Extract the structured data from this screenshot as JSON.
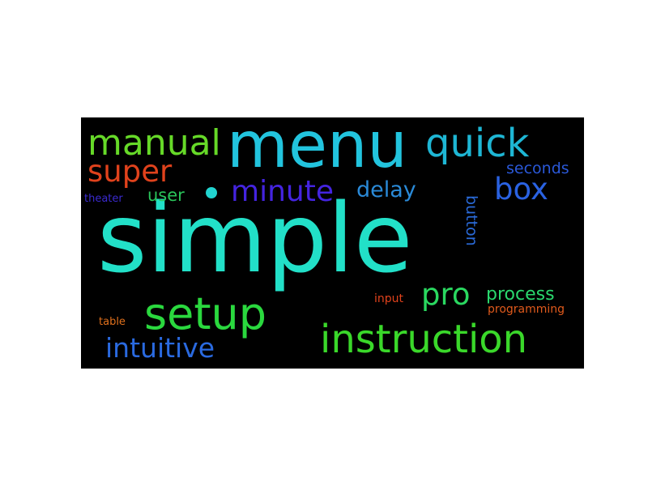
{
  "wordcloud": {
    "background": "#000000",
    "words": [
      {
        "key": "simple",
        "text": "simple",
        "color": "#22e0c8"
      },
      {
        "key": "menu",
        "text": "menu",
        "color": "#22c4de"
      },
      {
        "key": "quick",
        "text": "quick",
        "color": "#1eb6d4"
      },
      {
        "key": "manual",
        "text": "manual",
        "color": "#66d928"
      },
      {
        "key": "super",
        "text": "super",
        "color": "#e0421c"
      },
      {
        "key": "minute",
        "text": "minute",
        "color": "#4424e0"
      },
      {
        "key": "box",
        "text": "box",
        "color": "#2a62e2"
      },
      {
        "key": "delay",
        "text": "delay",
        "color": "#2a8ad8"
      },
      {
        "key": "user",
        "text": "user",
        "color": "#2ac45a"
      },
      {
        "key": "seconds",
        "text": "seconds",
        "color": "#2a58d8"
      },
      {
        "key": "theater",
        "text": "theater",
        "color": "#3a2ad0"
      },
      {
        "key": "button",
        "text": "button",
        "color": "#2a6ad8"
      },
      {
        "key": "setup",
        "text": "setup",
        "color": "#2ad83e"
      },
      {
        "key": "pro",
        "text": "pro",
        "color": "#2ad860"
      },
      {
        "key": "process",
        "text": "process",
        "color": "#2ad86e"
      },
      {
        "key": "input",
        "text": "input",
        "color": "#e0421c"
      },
      {
        "key": "programming",
        "text": "programming",
        "color": "#e05a1c"
      },
      {
        "key": "instruction",
        "text": "instruction",
        "color": "#3ad82a"
      },
      {
        "key": "table",
        "text": "table",
        "color": "#e0701c"
      },
      {
        "key": "intuitive",
        "text": "intuitive",
        "color": "#2a6ae0"
      }
    ],
    "dot_color": "#22d4d0"
  }
}
